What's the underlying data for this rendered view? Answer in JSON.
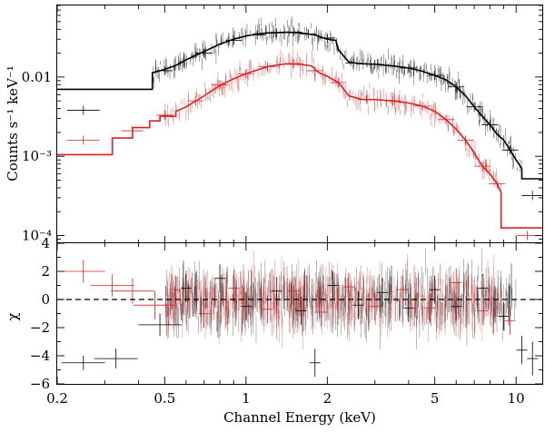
{
  "chart_data": [
    {
      "type": "line",
      "panel": "top",
      "xscale": "log",
      "yscale": "log",
      "xlim": [
        0.2,
        12.5
      ],
      "ylim": [
        8e-05,
        0.08
      ],
      "ylabel": "Counts s⁻¹ keV⁻¹",
      "y_ticks": [
        {
          "value": 0.01,
          "label": "0.01"
        },
        {
          "value": 0.001,
          "label": "10⁻³"
        },
        {
          "value": 0.0001,
          "label": "10⁻⁴"
        }
      ],
      "series": [
        {
          "name": "black spectrum",
          "color": "#000000",
          "model": [
            [
              0.2,
              0.007
            ],
            [
              0.45,
              0.007
            ],
            [
              0.45,
              0.0113
            ],
            [
              0.5,
              0.0125
            ],
            [
              0.55,
              0.014
            ],
            [
              0.6,
              0.0165
            ],
            [
              0.7,
              0.021
            ],
            [
              0.8,
              0.026
            ],
            [
              0.9,
              0.03
            ],
            [
              1.0,
              0.033
            ],
            [
              1.1,
              0.035
            ],
            [
              1.2,
              0.036
            ],
            [
              1.4,
              0.0368
            ],
            [
              1.6,
              0.036
            ],
            [
              1.8,
              0.034
            ],
            [
              2.0,
              0.03
            ],
            [
              2.15,
              0.029
            ],
            [
              2.2,
              0.022
            ],
            [
              2.4,
              0.0155
            ],
            [
              2.6,
              0.0148
            ],
            [
              3.0,
              0.0145
            ],
            [
              3.5,
              0.0138
            ],
            [
              4.0,
              0.013
            ],
            [
              4.5,
              0.0118
            ],
            [
              5.0,
              0.0105
            ],
            [
              5.5,
              0.0092
            ],
            [
              6.0,
              0.0075
            ],
            [
              6.5,
              0.0058
            ],
            [
              7.0,
              0.0042
            ],
            [
              7.5,
              0.0032
            ],
            [
              8.0,
              0.0025
            ],
            [
              8.5,
              0.0019
            ],
            [
              9.0,
              0.0016
            ],
            [
              9.5,
              0.0012
            ],
            [
              10.0,
              0.0009
            ],
            [
              10.5,
              0.0007
            ],
            [
              10.5,
              0.00052
            ],
            [
              12.5,
              0.00052
            ]
          ],
          "points": [
            [
              0.25,
              0.0038,
              0.06
            ],
            [
              0.5,
              0.012,
              0.03
            ],
            [
              0.7,
              0.02,
              0.03
            ],
            [
              0.9,
              0.029,
              0.03
            ],
            [
              1.1,
              0.034,
              0.03
            ],
            [
              1.3,
              0.036,
              0.03
            ],
            [
              1.5,
              0.037,
              0.03
            ],
            [
              1.7,
              0.035,
              0.03
            ],
            [
              2.0,
              0.031,
              0.03
            ],
            [
              2.5,
              0.015,
              0.03
            ],
            [
              3.0,
              0.0145,
              0.03
            ],
            [
              4.0,
              0.013,
              0.03
            ],
            [
              5.0,
              0.0105,
              0.03
            ],
            [
              6.0,
              0.0075,
              0.03
            ],
            [
              7.0,
              0.0042,
              0.03
            ],
            [
              8.0,
              0.0025,
              0.03
            ],
            [
              9.5,
              0.0012,
              0.03
            ],
            [
              11.5,
              0.00032,
              0.04
            ]
          ]
        },
        {
          "name": "red spectrum",
          "color": "#e02020",
          "model": [
            [
              0.2,
              0.00105
            ],
            [
              0.32,
              0.00105
            ],
            [
              0.32,
              0.0017
            ],
            [
              0.38,
              0.0017
            ],
            [
              0.38,
              0.0023
            ],
            [
              0.44,
              0.0023
            ],
            [
              0.44,
              0.0028
            ],
            [
              0.48,
              0.0028
            ],
            [
              0.48,
              0.0032
            ],
            [
              0.55,
              0.0032
            ],
            [
              0.55,
              0.0037
            ],
            [
              0.6,
              0.0042
            ],
            [
              0.7,
              0.0058
            ],
            [
              0.8,
              0.0078
            ],
            [
              0.9,
              0.0095
            ],
            [
              1.0,
              0.011
            ],
            [
              1.2,
              0.0135
            ],
            [
              1.4,
              0.0147
            ],
            [
              1.6,
              0.0145
            ],
            [
              1.75,
              0.0138
            ],
            [
              1.85,
              0.0115
            ],
            [
              2.0,
              0.0102
            ],
            [
              2.2,
              0.0085
            ],
            [
              2.4,
              0.0058
            ],
            [
              2.7,
              0.0052
            ],
            [
              3.0,
              0.0052
            ],
            [
              3.5,
              0.005
            ],
            [
              4.0,
              0.0047
            ],
            [
              4.5,
              0.0043
            ],
            [
              5.0,
              0.0037
            ],
            [
              5.5,
              0.0029
            ],
            [
              6.0,
              0.0022
            ],
            [
              6.5,
              0.0016
            ],
            [
              7.0,
              0.0011
            ],
            [
              7.5,
              0.00075
            ],
            [
              8.0,
              0.0006
            ],
            [
              8.5,
              0.00045
            ],
            [
              8.8,
              0.00035
            ],
            [
              8.8,
              0.000125
            ],
            [
              12.5,
              0.000125
            ]
          ],
          "points": [
            [
              0.25,
              0.0016,
              0.06
            ],
            [
              0.38,
              0.0021,
              0.04
            ],
            [
              0.5,
              0.0033,
              0.03
            ],
            [
              0.65,
              0.005,
              0.03
            ],
            [
              0.8,
              0.008,
              0.03
            ],
            [
              1.0,
              0.011,
              0.03
            ],
            [
              1.2,
              0.0135,
              0.03
            ],
            [
              1.5,
              0.0148,
              0.03
            ],
            [
              1.8,
              0.012,
              0.03
            ],
            [
              2.2,
              0.0085,
              0.03
            ],
            [
              2.8,
              0.0052,
              0.03
            ],
            [
              3.5,
              0.005,
              0.03
            ],
            [
              4.5,
              0.0043,
              0.03
            ],
            [
              5.5,
              0.0029,
              0.03
            ],
            [
              6.5,
              0.0016,
              0.03
            ],
            [
              7.5,
              0.00075,
              0.03
            ],
            [
              8.5,
              0.00045,
              0.03
            ],
            [
              11.0,
              0.0001,
              0.04
            ]
          ]
        }
      ]
    },
    {
      "type": "scatter",
      "panel": "bottom",
      "xscale": "log",
      "xlim": [
        0.2,
        12.5
      ],
      "ylim": [
        -6,
        4
      ],
      "xlabel": "Channel Energy (keV)",
      "ylabel": "χ",
      "reference_line": 0,
      "x_ticks": [
        {
          "value": 0.2,
          "label": "0.2"
        },
        {
          "value": 0.5,
          "label": "0.5"
        },
        {
          "value": 1,
          "label": "1"
        },
        {
          "value": 2,
          "label": "2"
        },
        {
          "value": 5,
          "label": "5"
        },
        {
          "value": 10,
          "label": "10"
        }
      ],
      "y_ticks": [
        {
          "value": 4,
          "label": "4"
        },
        {
          "value": 2,
          "label": "2"
        },
        {
          "value": 0,
          "label": "0"
        },
        {
          "value": -2,
          "label": "−2"
        },
        {
          "value": -4,
          "label": "−4"
        },
        {
          "value": -6,
          "label": "−6"
        }
      ],
      "series": [
        {
          "name": "black residuals",
          "color": "#000000",
          "points": [
            [
              0.25,
              -4.5,
              0.5
            ],
            [
              0.33,
              -4.2,
              0.7
            ],
            [
              0.48,
              -1.8,
              0.8
            ],
            [
              0.6,
              0.8,
              1.0
            ],
            [
              0.8,
              1.5,
              1.0
            ],
            [
              1.0,
              -0.5,
              1.0
            ],
            [
              1.3,
              0.6,
              1.0
            ],
            [
              1.6,
              -0.8,
              1.0
            ],
            [
              1.8,
              -4.5,
              1.0
            ],
            [
              2.1,
              1.0,
              1.0
            ],
            [
              2.6,
              -0.4,
              1.0
            ],
            [
              3.2,
              0.5,
              1.0
            ],
            [
              4.0,
              -0.6,
              1.0
            ],
            [
              5.0,
              0.7,
              1.0
            ],
            [
              6.0,
              -0.5,
              1.0
            ],
            [
              7.5,
              0.8,
              1.0
            ],
            [
              9.0,
              -1.2,
              1.0
            ],
            [
              10.5,
              -3.6,
              1.0
            ],
            [
              11.5,
              -4.2,
              1.2
            ]
          ]
        },
        {
          "name": "red residuals",
          "color": "#e02020",
          "points": [
            [
              0.25,
              2.0,
              0.8
            ],
            [
              0.32,
              1.0,
              0.8
            ],
            [
              0.38,
              0.6,
              0.9
            ],
            [
              0.46,
              -0.4,
              1.0
            ],
            [
              0.55,
              0.7,
              1.0
            ],
            [
              0.7,
              -1.0,
              1.0
            ],
            [
              0.9,
              0.8,
              1.0
            ],
            [
              1.2,
              -0.7,
              1.0
            ],
            [
              1.5,
              0.6,
              1.0
            ],
            [
              1.9,
              -0.9,
              1.0
            ],
            [
              2.4,
              0.9,
              1.0
            ],
            [
              3.0,
              -0.5,
              1.0
            ],
            [
              3.8,
              0.7,
              1.0
            ],
            [
              4.8,
              -0.6,
              1.0
            ],
            [
              6.0,
              1.2,
              1.0
            ],
            [
              7.5,
              -0.8,
              1.0
            ],
            [
              9.5,
              -1.5,
              1.0
            ]
          ]
        }
      ]
    }
  ]
}
